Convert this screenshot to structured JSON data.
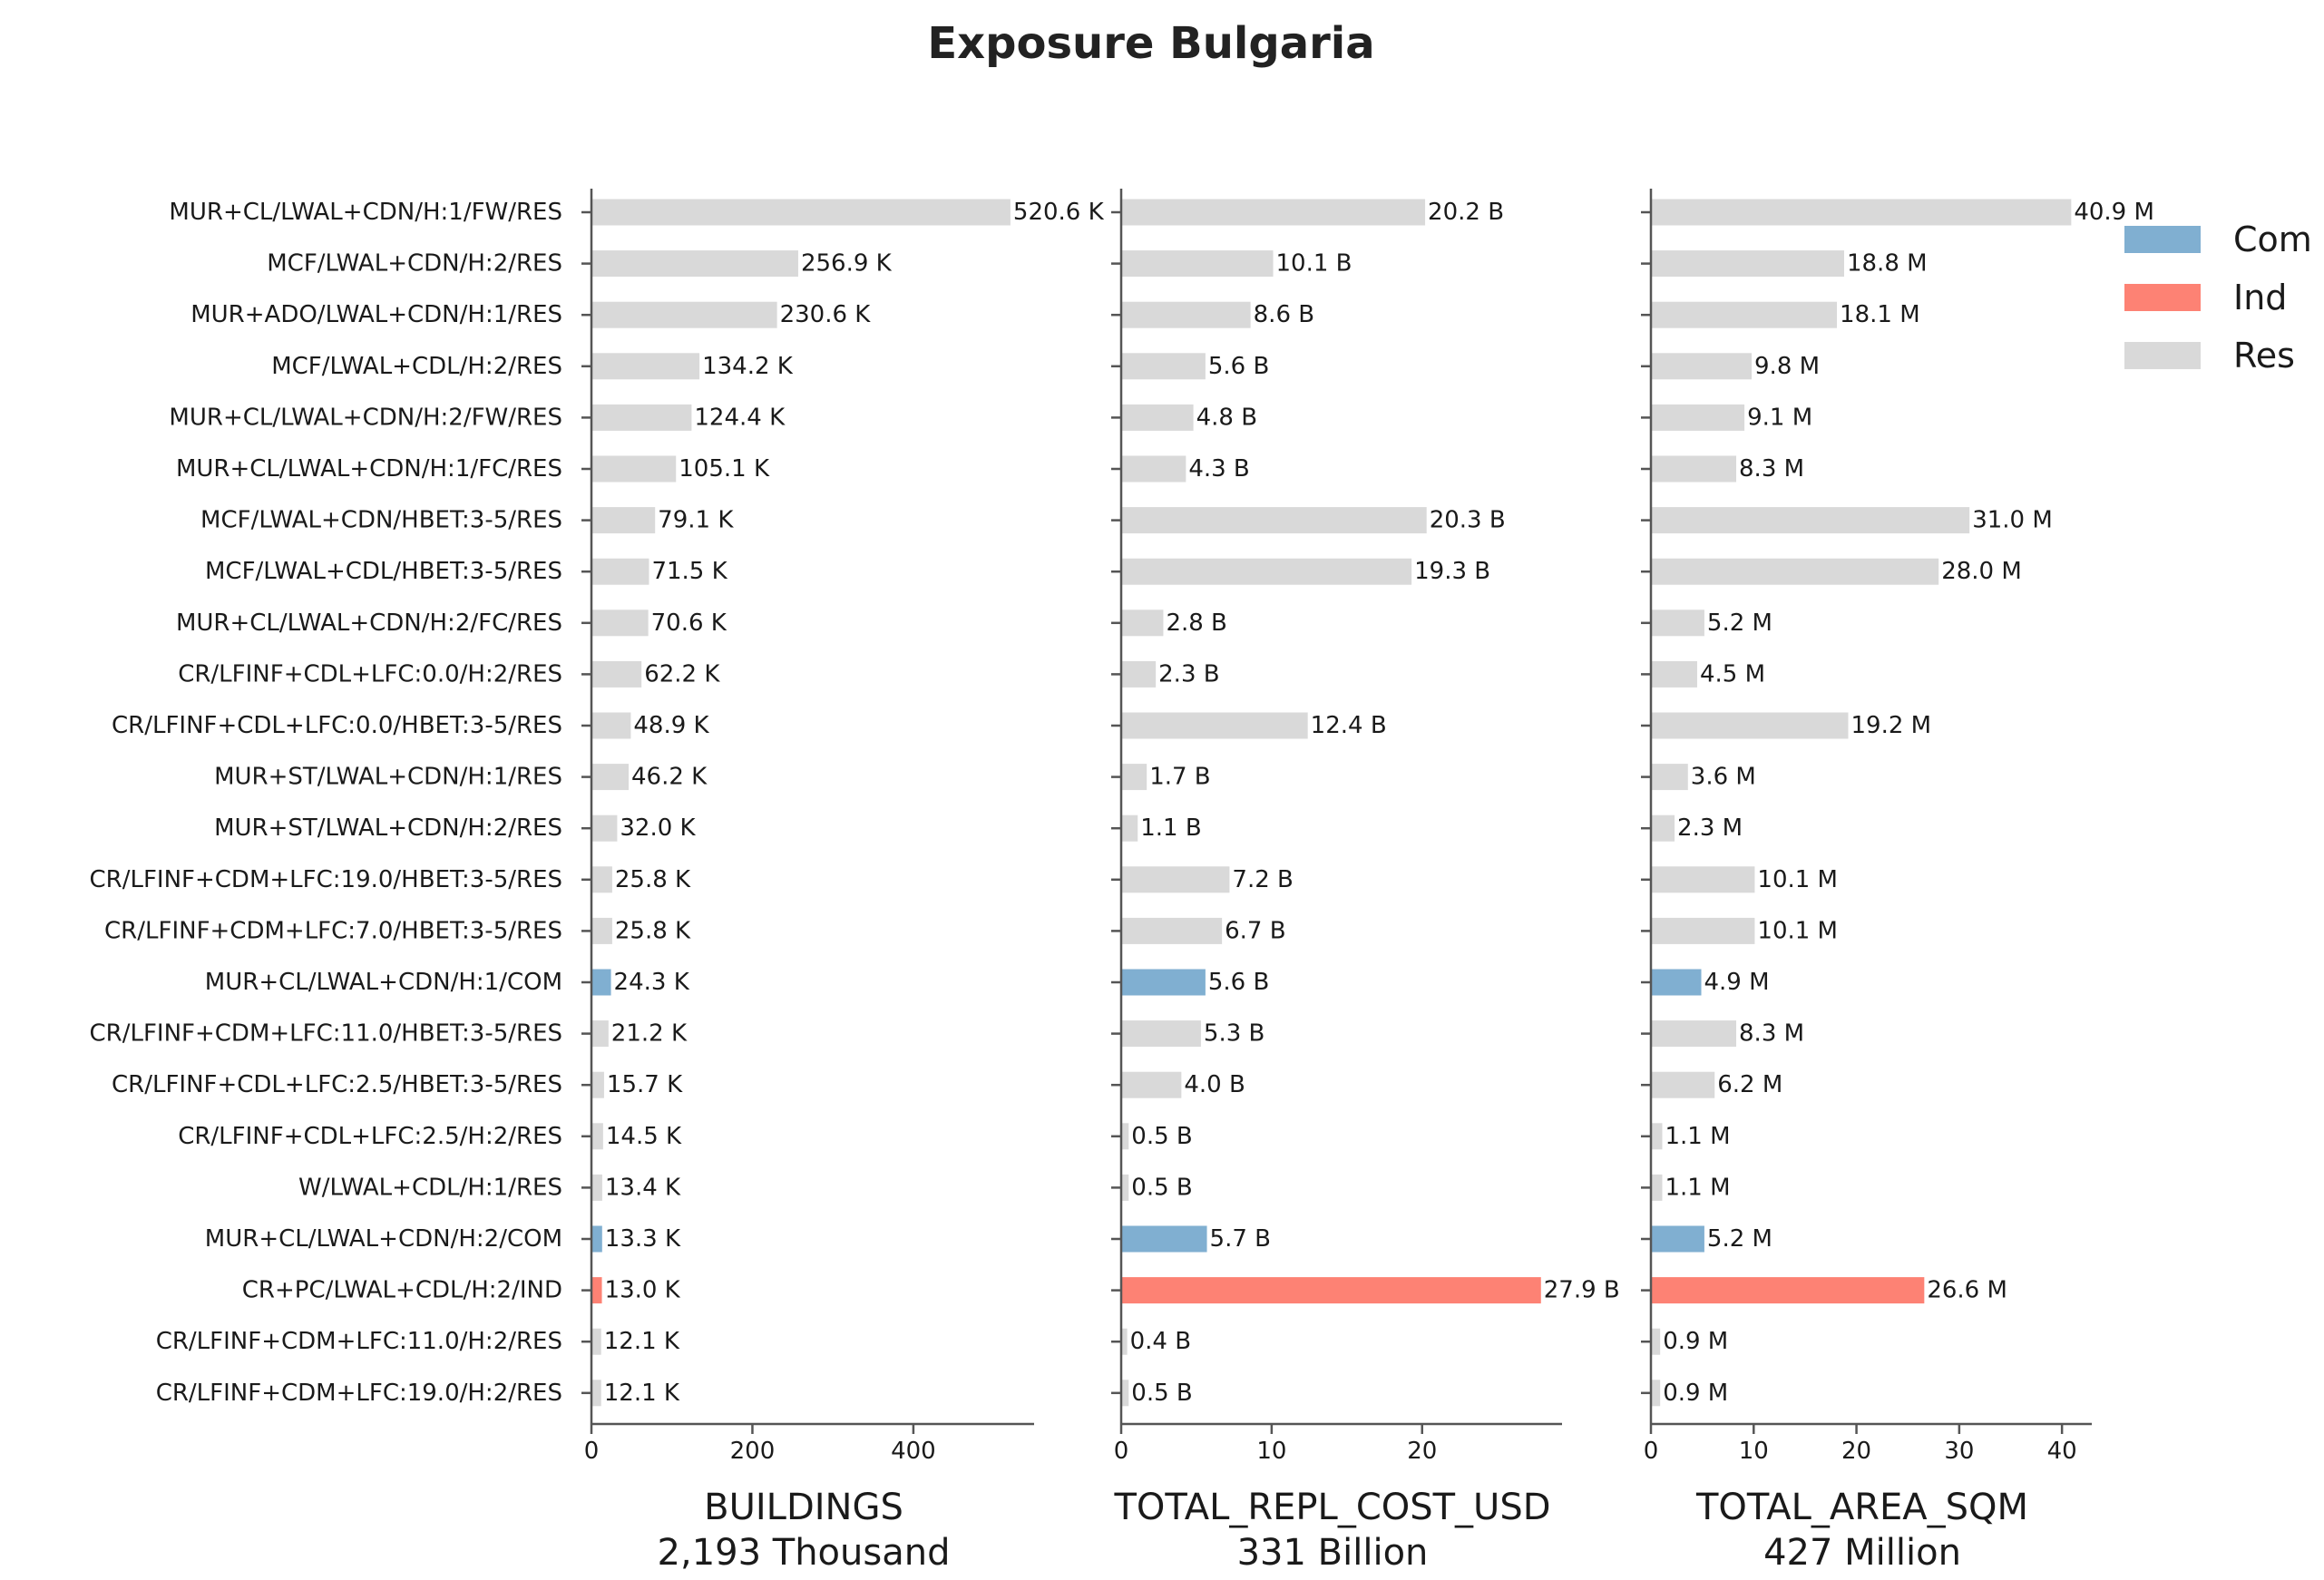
{
  "chart_data": {
    "type": "bar",
    "orientation": "horizontal",
    "title": "Exposure Bulgaria",
    "categories": [
      "MUR+CL/LWAL+CDN/H:1/FW/RES",
      "MCF/LWAL+CDN/H:2/RES",
      "MUR+ADO/LWAL+CDN/H:1/RES",
      "MCF/LWAL+CDL/H:2/RES",
      "MUR+CL/LWAL+CDN/H:2/FW/RES",
      "MUR+CL/LWAL+CDN/H:1/FC/RES",
      "MCF/LWAL+CDN/HBET:3-5/RES",
      "MCF/LWAL+CDL/HBET:3-5/RES",
      "MUR+CL/LWAL+CDN/H:2/FC/RES",
      "CR/LFINF+CDL+LFC:0.0/H:2/RES",
      "CR/LFINF+CDL+LFC:0.0/HBET:3-5/RES",
      "MUR+ST/LWAL+CDN/H:1/RES",
      "MUR+ST/LWAL+CDN/H:2/RES",
      "CR/LFINF+CDM+LFC:19.0/HBET:3-5/RES",
      "CR/LFINF+CDM+LFC:7.0/HBET:3-5/RES",
      "MUR+CL/LWAL+CDN/H:1/COM",
      "CR/LFINF+CDM+LFC:11.0/HBET:3-5/RES",
      "CR/LFINF+CDL+LFC:2.5/HBET:3-5/RES",
      "CR/LFINF+CDL+LFC:2.5/H:2/RES",
      "W/LWAL+CDL/H:1/RES",
      "MUR+CL/LWAL+CDN/H:2/COM",
      "CR+PC/LWAL+CDL/H:2/IND",
      "CR/LFINF+CDM+LFC:11.0/H:2/RES",
      "CR/LFINF+CDM+LFC:19.0/H:2/RES"
    ],
    "occupancy": [
      "Res",
      "Res",
      "Res",
      "Res",
      "Res",
      "Res",
      "Res",
      "Res",
      "Res",
      "Res",
      "Res",
      "Res",
      "Res",
      "Res",
      "Res",
      "Com",
      "Res",
      "Res",
      "Res",
      "Res",
      "Com",
      "Ind",
      "Res",
      "Res"
    ],
    "legend": {
      "placement": "top-right",
      "items": [
        {
          "name": "Com",
          "color": "#80afd1"
        },
        {
          "name": "Ind",
          "color": "#fd8274"
        },
        {
          "name": "Res",
          "color": "#d9d9d9"
        }
      ]
    },
    "panels": [
      {
        "xlabel": "BUILDINGS",
        "subtitle": "2,193 Thousand",
        "unit": "Thousand",
        "xlim": [
          0,
          550
        ],
        "xticks": [
          0,
          200,
          400
        ],
        "values": [
          520.6,
          256.9,
          230.6,
          134.2,
          124.4,
          105.1,
          79.1,
          71.5,
          70.6,
          62.2,
          48.9,
          46.2,
          32.0,
          25.8,
          25.8,
          24.3,
          21.2,
          15.7,
          14.5,
          13.4,
          13.3,
          13.0,
          12.1,
          12.1
        ],
        "labels": [
          "520.6 K",
          "256.9 K",
          "230.6 K",
          "134.2 K",
          "124.4 K",
          "105.1 K",
          "79.1 K",
          "71.5 K",
          "70.6 K",
          "62.2 K",
          "48.9 K",
          "46.2 K",
          "32.0 K",
          "25.8 K",
          "25.8 K",
          "24.3 K",
          "21.2 K",
          "15.7 K",
          "14.5 K",
          "13.4 K",
          "13.3 K",
          "13.0 K",
          "12.1 K",
          "12.1 K"
        ]
      },
      {
        "xlabel": "TOTAL_REPL_COST_USD",
        "subtitle": "331 Billion",
        "unit": "Billion USD",
        "xlim": [
          0,
          29.3
        ],
        "xticks": [
          0,
          10,
          20
        ],
        "values": [
          20.2,
          10.1,
          8.6,
          5.6,
          4.8,
          4.3,
          20.3,
          19.3,
          2.8,
          2.3,
          12.4,
          1.7,
          1.1,
          7.2,
          6.7,
          5.6,
          5.3,
          4.0,
          0.5,
          0.5,
          5.7,
          27.9,
          0.4,
          0.5
        ],
        "labels": [
          "20.2 B",
          "10.1 B",
          "8.6 B",
          "5.6 B",
          "4.8 B",
          "4.3 B",
          "20.3 B",
          "19.3 B",
          "2.8 B",
          "2.3 B",
          "12.4 B",
          "1.7 B",
          "1.1 B",
          "7.2 B",
          "6.7 B",
          "5.6 B",
          "5.3 B",
          "4.0 B",
          "0.5 B",
          "0.5 B",
          "5.7 B",
          "27.9 B",
          "0.4 B",
          "0.5 B"
        ]
      },
      {
        "xlabel": "TOTAL_AREA_SQM",
        "subtitle": "427 Million",
        "unit": "Million sqm",
        "xlim": [
          0,
          42.9
        ],
        "xticks": [
          0,
          10,
          20,
          30,
          40
        ],
        "values": [
          40.9,
          18.8,
          18.1,
          9.8,
          9.1,
          8.3,
          31.0,
          28.0,
          5.2,
          4.5,
          19.2,
          3.6,
          2.3,
          10.1,
          10.1,
          4.9,
          8.3,
          6.2,
          1.1,
          1.1,
          5.2,
          26.6,
          0.9,
          0.9
        ],
        "labels": [
          "40.9 M",
          "18.8 M",
          "18.1 M",
          "9.8 M",
          "9.1 M",
          "8.3 M",
          "31.0 M",
          "28.0 M",
          "5.2 M",
          "4.5 M",
          "19.2 M",
          "3.6 M",
          "2.3 M",
          "10.1 M",
          "10.1 M",
          "4.9 M",
          "8.3 M",
          "6.2 M",
          "1.1 M",
          "1.1 M",
          "5.2 M",
          "26.6 M",
          "0.9 M",
          "0.9 M"
        ]
      }
    ],
    "grid": false
  }
}
